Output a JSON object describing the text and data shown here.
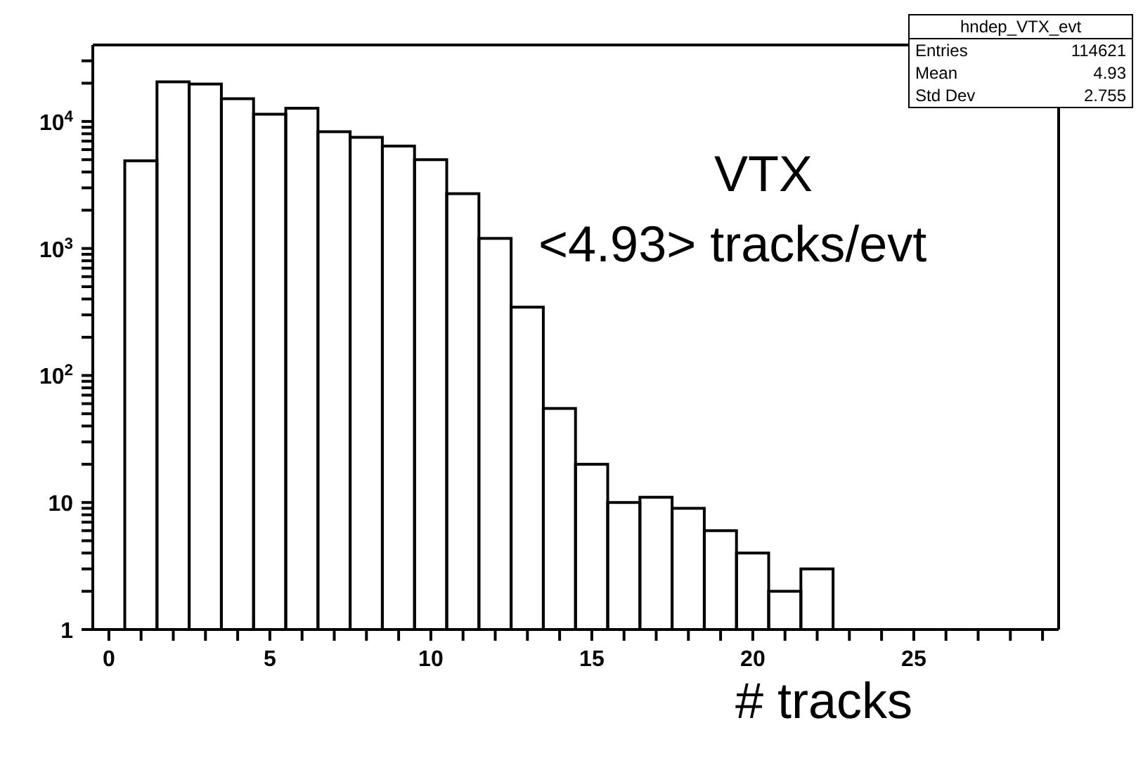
{
  "chart_data": {
    "type": "histogram",
    "xlabel": "# tracks",
    "annotations": [
      "hndep_VTX_evt",
      "Entries",
      "114621",
      "Mean",
      "4.93",
      "Std Dev",
      "2.755",
      "VTX",
      "<4.93> tracks/evt"
    ],
    "bins": [
      0.5,
      1.5,
      2.5,
      3.5,
      4.5,
      5.5,
      6.5,
      7.5,
      8.5,
      9.5,
      10.5,
      11.5,
      12.5,
      13.5,
      14.5,
      15.5,
      16.5,
      17.5,
      18.5,
      19.5,
      20.5,
      21.5,
      22.5
    ],
    "values": [
      4900,
      20500,
      19700,
      15100,
      11400,
      12700,
      8300,
      7500,
      6400,
      5000,
      2700,
      1200,
      345,
      55,
      20,
      10,
      11,
      9,
      6,
      4,
      2,
      3
    ],
    "color": "#000000",
    "log": "y",
    "grid": false,
    "xlim": [
      -0.5,
      29.5
    ],
    "xticks": [
      0,
      {
        "value": 1,
        "label": null
      },
      {
        "value": 2,
        "label": null
      },
      {
        "value": 3,
        "label": null
      },
      {
        "value": 4,
        "label": null
      },
      5,
      {
        "value": 6,
        "label": null
      },
      {
        "value": 7,
        "label": null
      },
      {
        "value": 8,
        "label": null
      },
      {
        "value": 9,
        "label": null
      },
      10,
      {
        "value": 11,
        "label": null
      },
      {
        "value": 12,
        "label": null
      },
      {
        "value": 13,
        "label": null
      },
      {
        "value": 14,
        "label": null
      },
      15,
      {
        "value": 16,
        "label": null
      },
      {
        "value": 17,
        "label": null
      },
      {
        "value": 18,
        "label": null
      },
      {
        "value": 19,
        "label": null
      },
      20,
      {
        "value": 21,
        "label": null
      },
      {
        "value": 22,
        "label": null
      },
      {
        "value": 23,
        "label": null
      },
      {
        "value": 24,
        "label": null
      },
      25,
      {
        "value": 26,
        "label": null
      },
      {
        "value": 27,
        "label": null
      },
      {
        "value": 28,
        "label": null
      },
      {
        "value": 29,
        "label": null
      }
    ],
    "ylim": [
      1,
      40000
    ],
    "yticks": [
      1,
      {
        "value": 2,
        "label": null
      },
      {
        "value": 3,
        "label": null
      },
      {
        "value": 4,
        "label": null
      },
      {
        "value": 5,
        "label": null
      },
      {
        "value": 6,
        "label": null
      },
      {
        "value": 7,
        "label": null
      },
      {
        "value": 8,
        "label": null
      },
      {
        "value": 9,
        "label": null
      },
      10,
      {
        "value": 20,
        "label": null
      },
      {
        "value": 30,
        "label": null
      },
      {
        "value": 40,
        "label": null
      },
      {
        "value": 50,
        "label": null
      },
      {
        "value": 60,
        "label": null
      },
      {
        "value": 70,
        "label": null
      },
      {
        "value": 80,
        "label": null
      },
      {
        "value": 90,
        "label": null
      },
      {
        "value": 100,
        "label": "10$^{2}$"
      },
      {
        "value": 200,
        "label": null
      },
      {
        "value": 300,
        "label": null
      },
      {
        "value": 400,
        "label": null
      },
      {
        "value": 500,
        "label": null
      },
      {
        "value": 600,
        "label": null
      },
      {
        "value": 700,
        "label": null
      },
      {
        "value": 800,
        "label": null
      },
      {
        "value": 900,
        "label": null
      },
      {
        "value": 1000,
        "label": "10$^{3}$"
      },
      {
        "value": 2000,
        "label": null
      },
      {
        "value": 3000,
        "label": null
      },
      {
        "value": 4000,
        "label": null
      },
      {
        "value": 5000,
        "label": null
      },
      {
        "value": 6000,
        "label": null
      },
      {
        "value": 7000,
        "label": null
      },
      {
        "value": 8000,
        "label": null
      },
      {
        "value": 9000,
        "label": null
      },
      {
        "value": 10000,
        "label": "10$^{4}$"
      },
      {
        "value": 20000,
        "label": null
      },
      {
        "value": 30000,
        "label": null
      }
    ]
  }
}
